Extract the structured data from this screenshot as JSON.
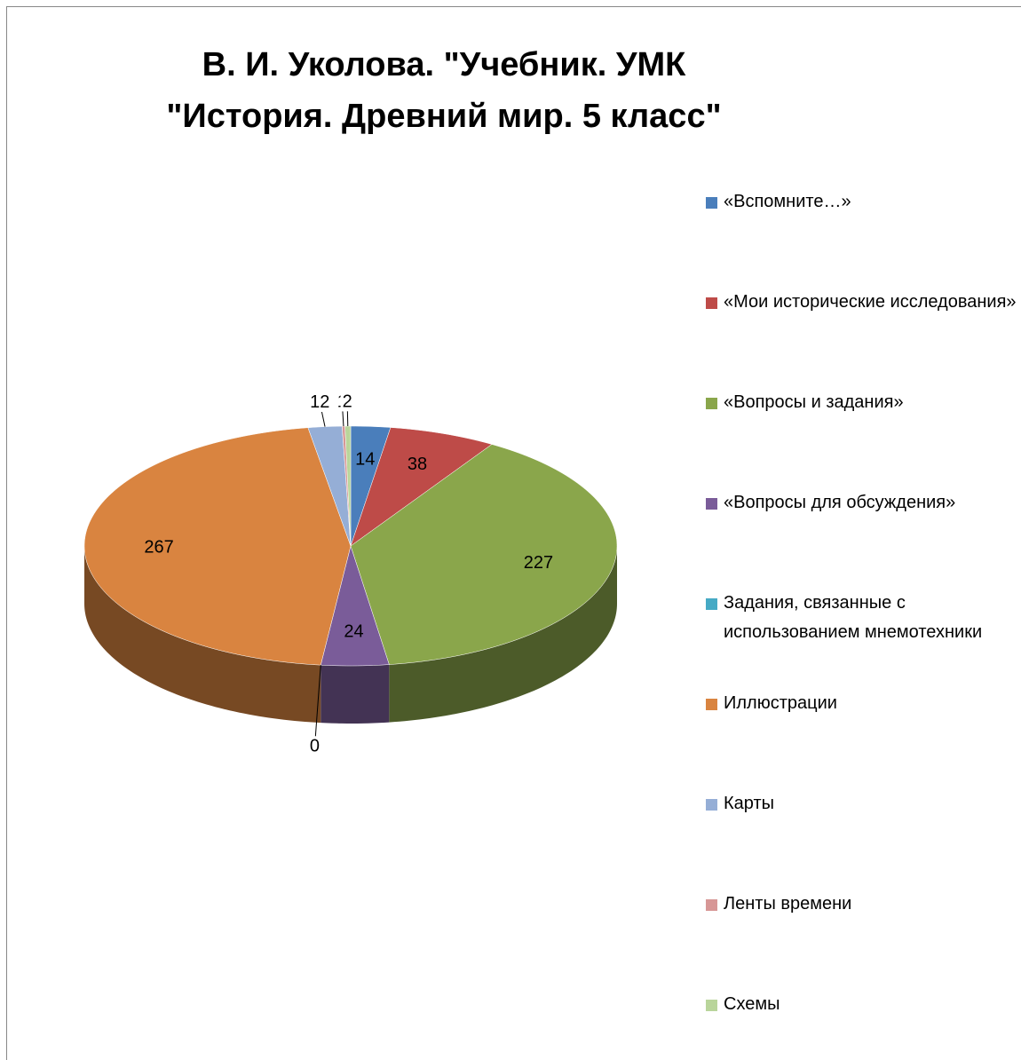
{
  "chart_data": {
    "type": "pie3d",
    "title": "В. И. Уколова. \"Учебник. УМК \"История. Древний мир. 5 класс\"",
    "categories": [
      "«Вспомните…»",
      "«Мои исторические исследования»",
      "«Вопросы и задания»",
      "«Вопросы для обсуждения»",
      "Задания, связанные с использованием мнемотехники",
      "Иллюстрации",
      "Карты",
      "Ленты времени",
      "Схемы"
    ],
    "values": [
      14,
      38,
      227,
      24,
      0,
      267,
      12,
      1,
      2
    ],
    "colors": [
      "#4a7ebb",
      "#be4b48",
      "#8aa64b",
      "#7a5c99",
      "#46aac5",
      "#d98440",
      "#95aed6",
      "#d79796",
      "#b9d59b"
    ],
    "legend": "right"
  }
}
